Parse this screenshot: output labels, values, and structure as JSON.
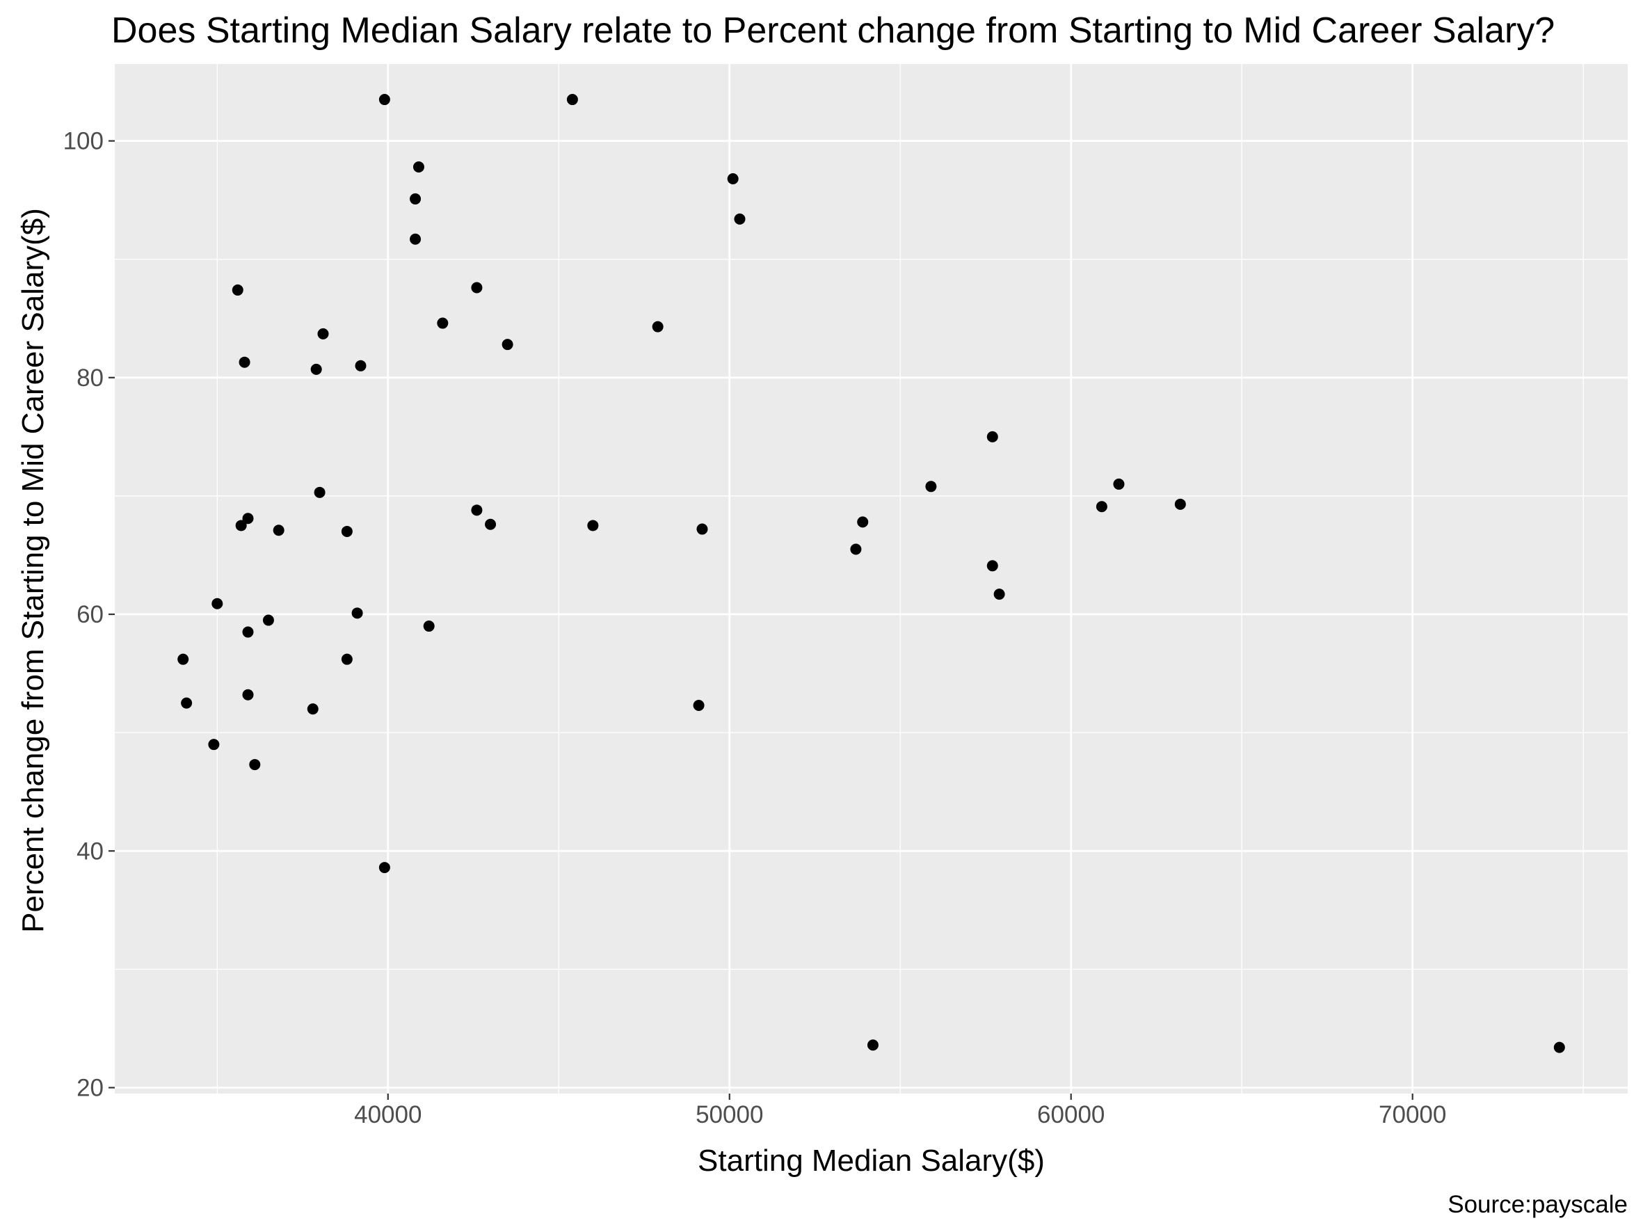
{
  "chart_data": {
    "type": "scatter",
    "title": "Does Starting Median Salary relate to Percent change from Starting to Mid Career Salary?",
    "xlabel": "Starting Median Salary($)",
    "ylabel": "Percent change from Starting to Mid Career Salary($)",
    "caption": "Source:payscale",
    "xlim": [
      32000,
      76300
    ],
    "ylim": [
      19.5,
      106.5
    ],
    "x_ticks": [
      40000,
      50000,
      60000,
      70000
    ],
    "x_minor_ticks": [
      35000,
      45000,
      55000,
      65000,
      75000
    ],
    "y_ticks": [
      20,
      40,
      60,
      80,
      100
    ],
    "y_minor_ticks": [
      30,
      50,
      70,
      90
    ],
    "grid": true,
    "background": "#EBEBEB",
    "grid_color": "#FFFFFF",
    "point_color": "#000000",
    "points": [
      {
        "x": 34000,
        "y": 56.2
      },
      {
        "x": 34100,
        "y": 52.5
      },
      {
        "x": 34900,
        "y": 49.0
      },
      {
        "x": 35000,
        "y": 60.9
      },
      {
        "x": 35600,
        "y": 87.4
      },
      {
        "x": 35700,
        "y": 67.5
      },
      {
        "x": 35800,
        "y": 81.3
      },
      {
        "x": 35900,
        "y": 68.1
      },
      {
        "x": 35900,
        "y": 58.5
      },
      {
        "x": 35900,
        "y": 53.2
      },
      {
        "x": 36100,
        "y": 47.3
      },
      {
        "x": 36500,
        "y": 59.5
      },
      {
        "x": 36800,
        "y": 67.1
      },
      {
        "x": 37800,
        "y": 52.0
      },
      {
        "x": 37900,
        "y": 80.7
      },
      {
        "x": 38000,
        "y": 70.3
      },
      {
        "x": 38100,
        "y": 83.7
      },
      {
        "x": 38800,
        "y": 67.0
      },
      {
        "x": 38800,
        "y": 56.2
      },
      {
        "x": 39100,
        "y": 60.1
      },
      {
        "x": 39200,
        "y": 81.0
      },
      {
        "x": 39900,
        "y": 103.5
      },
      {
        "x": 39900,
        "y": 38.6
      },
      {
        "x": 40800,
        "y": 95.1
      },
      {
        "x": 40800,
        "y": 91.7
      },
      {
        "x": 40900,
        "y": 97.8
      },
      {
        "x": 41200,
        "y": 59.0
      },
      {
        "x": 41600,
        "y": 84.6
      },
      {
        "x": 42600,
        "y": 87.6
      },
      {
        "x": 42600,
        "y": 68.8
      },
      {
        "x": 43000,
        "y": 67.6
      },
      {
        "x": 43500,
        "y": 82.8
      },
      {
        "x": 45400,
        "y": 103.5
      },
      {
        "x": 46000,
        "y": 67.5
      },
      {
        "x": 47900,
        "y": 84.3
      },
      {
        "x": 49100,
        "y": 52.3
      },
      {
        "x": 49200,
        "y": 67.2
      },
      {
        "x": 50100,
        "y": 96.8
      },
      {
        "x": 50300,
        "y": 93.4
      },
      {
        "x": 53700,
        "y": 65.5
      },
      {
        "x": 53900,
        "y": 67.8
      },
      {
        "x": 54200,
        "y": 23.6
      },
      {
        "x": 55900,
        "y": 70.8
      },
      {
        "x": 57700,
        "y": 75.0
      },
      {
        "x": 57700,
        "y": 64.1
      },
      {
        "x": 57900,
        "y": 61.7
      },
      {
        "x": 60900,
        "y": 69.1
      },
      {
        "x": 61400,
        "y": 71.0
      },
      {
        "x": 63200,
        "y": 69.3
      },
      {
        "x": 74300,
        "y": 23.4
      }
    ]
  }
}
